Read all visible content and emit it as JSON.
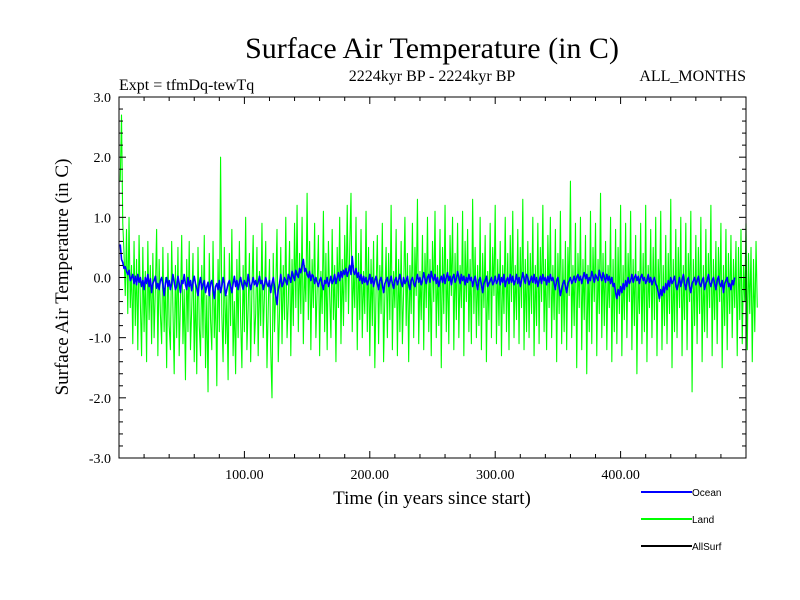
{
  "chart_data": {
    "type": "line",
    "title": "Surface Air Temperature (in C)",
    "subtitle_left": "Expt = tfmDq-tewTq",
    "subtitle_center": "2224kyr BP - 2224kyr BP",
    "subtitle_right": "ALL_MONTHS",
    "xlabel": "Time (in years since start)",
    "ylabel": "Surface Air Temperature (in C)",
    "xlim": [
      0,
      500
    ],
    "ylim": [
      -3.0,
      3.0
    ],
    "x_ticks": [
      100,
      200,
      300,
      400
    ],
    "x_tick_labels": [
      "100.00",
      "200.00",
      "300.00",
      "400.00"
    ],
    "y_ticks": [
      -3.0,
      -2.0,
      -1.0,
      0.0,
      1.0,
      2.0,
      3.0
    ],
    "y_tick_labels": [
      "-3.0",
      "-2.0",
      "-1.0",
      "0.0",
      "1.0",
      "2.0",
      "3.0"
    ],
    "legend_position": "bottom-right",
    "series": [
      {
        "name": "Ocean",
        "color": "#0000ff",
        "x_start": 1,
        "x_step": 1,
        "approx_mean": -0.05,
        "values": [
          0.55,
          0.3,
          0.25,
          0.15,
          0.18,
          0.1,
          0.05,
          0.12,
          -0.05,
          0.0,
          0.05,
          -0.1,
          0.02,
          -0.12,
          0.05,
          -0.08,
          0.0,
          -0.15,
          -0.05,
          -0.2,
          0.0,
          -0.1,
          0.05,
          -0.15,
          -0.02,
          -0.25,
          -0.1,
          -0.05,
          0.02,
          -0.18,
          -0.1,
          -0.2,
          -0.05,
          0.0,
          -0.12,
          -0.3,
          -0.1,
          0.0,
          -0.15,
          -0.05,
          -0.2,
          -0.1,
          0.05,
          -0.08,
          -0.2,
          -0.15,
          0.02,
          -0.1,
          -0.25,
          -0.05,
          -0.1,
          0.05,
          -0.12,
          -0.2,
          0.0,
          -0.15,
          -0.05,
          -0.22,
          -0.08,
          0.02,
          -0.1,
          -0.18,
          -0.3,
          -0.1,
          0.0,
          -0.2,
          -0.12,
          -0.05,
          -0.25,
          -0.15,
          -0.08,
          -0.3,
          -0.1,
          -0.05,
          -0.2,
          -0.35,
          -0.15,
          -0.1,
          -0.2,
          -0.05,
          -0.25,
          -0.15,
          0.0,
          -0.1,
          -0.3,
          -0.2,
          -0.1,
          -0.05,
          -0.15,
          -0.25,
          -0.1,
          0.02,
          -0.15,
          -0.05,
          -0.2,
          -0.08,
          0.0,
          -0.12,
          -0.2,
          -0.05,
          -0.1,
          -0.15,
          0.05,
          -0.08,
          -0.2,
          -0.1,
          0.0,
          -0.12,
          -0.05,
          -0.15,
          -0.08,
          0.02,
          -0.1,
          -0.05,
          -0.2,
          -0.12,
          0.0,
          -0.1,
          -0.15,
          -0.05,
          -0.25,
          -0.1,
          0.0,
          -0.15,
          -0.3,
          -0.45,
          -0.2,
          -0.1,
          0.05,
          -0.15,
          -0.1,
          0.0,
          -0.05,
          -0.12,
          0.05,
          0.0,
          -0.08,
          0.1,
          0.02,
          -0.05,
          0.12,
          0.05,
          0.0,
          0.15,
          0.08,
          0.2,
          0.3,
          0.1,
          0.15,
          0.05,
          0.0,
          0.1,
          -0.05,
          0.05,
          0.02,
          -0.1,
          0.0,
          -0.08,
          -0.15,
          -0.05,
          0.0,
          -0.12,
          -0.2,
          -0.05,
          -0.1,
          0.0,
          -0.15,
          -0.08,
          0.02,
          -0.1,
          -0.05,
          0.05,
          -0.1,
          0.0,
          0.08,
          -0.05,
          0.1,
          0.0,
          0.12,
          0.05,
          0.15,
          0.02,
          0.1,
          0.2,
          0.05,
          0.35,
          0.1,
          0.05,
          0.15,
          0.0,
          0.08,
          -0.05,
          0.05,
          -0.1,
          0.02,
          -0.08,
          0.0,
          -0.12,
          -0.05,
          0.05,
          -0.1,
          0.0,
          -0.15,
          -0.05,
          0.02,
          -0.1,
          -0.2,
          -0.05,
          0.0,
          -0.12,
          -0.25,
          -0.1,
          -0.05,
          0.0,
          -0.15,
          -0.08,
          0.02,
          -0.1,
          -0.18,
          -0.05,
          0.0,
          -0.12,
          -0.05,
          0.05,
          -0.08,
          -0.15,
          0.0,
          -0.1,
          -0.05,
          0.02,
          -0.12,
          -0.2,
          -0.05,
          0.0,
          -0.1,
          -0.15,
          -0.05,
          0.05,
          -0.08,
          0.0,
          -0.12,
          -0.05,
          0.08,
          -0.02,
          -0.1,
          0.0,
          0.05,
          -0.08,
          0.1,
          0.0,
          -0.05,
          0.05,
          -0.1,
          0.0,
          -0.15,
          -0.05,
          0.02,
          -0.08,
          0.05,
          -0.1,
          0.0,
          0.08,
          -0.05,
          0.02,
          -0.12,
          0.0,
          0.05,
          -0.08,
          -0.02,
          0.1,
          0.0,
          -0.1,
          0.05,
          -0.05,
          0.02,
          -0.12,
          0.0,
          -0.08,
          0.05,
          -0.05,
          0.0,
          -0.15,
          -0.05,
          0.02,
          -0.1,
          -0.2,
          -0.05,
          0.0,
          -0.12,
          -0.25,
          -0.1,
          -0.05,
          0.02,
          -0.15,
          -0.1,
          -0.05,
          0.0,
          -0.12,
          -0.08,
          0.02,
          -0.1,
          -0.05,
          0.05,
          -0.12,
          0.0,
          -0.08,
          0.05,
          -0.15,
          -0.05,
          0.0,
          -0.1,
          0.05,
          -0.08,
          0.02,
          -0.12,
          -0.05,
          0.05,
          -0.1,
          0.0,
          -0.15,
          -0.05,
          0.08,
          -0.02,
          -0.1,
          0.05,
          0.0,
          -0.12,
          -0.05,
          0.02,
          -0.08,
          0.05,
          -0.1,
          0.0,
          -0.15,
          -0.05,
          0.02,
          -0.1,
          0.05,
          -0.05,
          0.0,
          -0.12,
          0.02,
          -0.08,
          0.05,
          -0.05,
          0.0,
          -0.1,
          -0.2,
          -0.05,
          0.0,
          -0.15,
          -0.3,
          -0.2,
          -0.1,
          -0.05,
          -0.15,
          -0.25,
          -0.1,
          -0.05,
          0.0,
          -0.1,
          -0.05,
          0.02,
          -0.08,
          0.0,
          0.05,
          -0.05,
          0.02,
          -0.1,
          0.0,
          0.08,
          -0.02,
          0.05,
          -0.1,
          0.0,
          -0.05,
          0.1,
          0.02,
          -0.08,
          0.05,
          0.0,
          -0.05,
          0.12,
          0.02,
          -0.05,
          0.08,
          0.0,
          -0.08,
          0.05,
          -0.05,
          0.02,
          -0.1,
          0.0,
          -0.15,
          -0.1,
          -0.25,
          -0.35,
          -0.2,
          -0.3,
          -0.15,
          -0.25,
          -0.1,
          -0.2,
          -0.05,
          -0.15,
          0.0,
          -0.1,
          -0.05,
          0.05,
          -0.08,
          0.0,
          0.05,
          -0.05,
          0.02,
          -0.1,
          0.0,
          0.05,
          -0.05,
          0.0,
          -0.1,
          -0.05,
          0.05,
          -0.08,
          0.0,
          -0.12,
          -0.05,
          0.0,
          -0.1,
          -0.15,
          -0.25,
          -0.35,
          -0.2,
          -0.3,
          -0.15,
          -0.25,
          -0.1,
          -0.2,
          -0.05,
          -0.15,
          0.0,
          -0.1,
          -0.05,
          0.02,
          -0.12,
          -0.2,
          -0.1,
          0.0,
          -0.15,
          -0.05,
          0.05,
          -0.1,
          -0.2,
          -0.05,
          0.0,
          -0.15,
          -0.25,
          -0.1,
          -0.05,
          0.0,
          -0.12,
          -0.05,
          0.02,
          -0.1,
          -0.15,
          -0.05,
          0.0,
          -0.2,
          -0.1,
          -0.05,
          0.05,
          -0.08,
          -0.15,
          -0.05,
          0.0,
          -0.1,
          -0.2,
          -0.05,
          0.02,
          -0.1,
          -0.15,
          -0.05,
          -0.25,
          -0.1,
          -0.05,
          0.0,
          -0.15,
          -0.1,
          -0.2,
          -0.05,
          -0.12,
          0.0
        ]
      },
      {
        "name": "Land",
        "color": "#00ff00",
        "x_start": 1,
        "x_step": 1,
        "approx_mean": -0.15,
        "values": [
          1.6,
          2.7,
          0.9,
          0.4,
          -0.3,
          0.8,
          -0.6,
          1.0,
          -0.5,
          0.2,
          -1.1,
          0.6,
          -0.8,
          0.3,
          -1.2,
          0.7,
          -0.4,
          -1.3,
          0.5,
          -0.9,
          0.1,
          -1.4,
          0.6,
          -0.7,
          0.2,
          -1.1,
          0.4,
          -1.0,
          -0.2,
          0.8,
          -1.3,
          0.3,
          -0.6,
          -1.1,
          0.5,
          -0.9,
          0.0,
          -1.5,
          0.4,
          -0.8,
          -1.2,
          0.6,
          -0.5,
          -1.6,
          0.2,
          -1.0,
          0.5,
          -1.3,
          -0.4,
          0.7,
          -1.1,
          -0.2,
          -1.7,
          0.3,
          -0.9,
          0.6,
          -1.2,
          -0.5,
          0.4,
          -1.4,
          -0.1,
          -1.6,
          0.5,
          -0.8,
          -1.3,
          0.2,
          -1.0,
          0.7,
          -1.5,
          -0.3,
          -1.9,
          0.4,
          -0.7,
          -1.2,
          0.6,
          -1.0,
          -0.2,
          -1.8,
          0.3,
          -0.9,
          2.0,
          -0.6,
          -1.4,
          0.5,
          -1.1,
          -0.3,
          -1.7,
          0.4,
          -0.8,
          0.8,
          -1.3,
          -0.4,
          -1.6,
          0.3,
          -1.0,
          0.6,
          -0.7,
          -1.5,
          0.2,
          -0.9,
          1.0,
          -1.2,
          -0.5,
          0.4,
          -1.4,
          -0.2,
          0.7,
          -1.1,
          -0.6,
          0.5,
          -1.3,
          0.1,
          -0.8,
          0.9,
          -1.0,
          -0.3,
          0.6,
          -1.5,
          -0.5,
          0.3,
          -1.2,
          -2.0,
          0.4,
          -0.9,
          -0.2,
          0.8,
          -1.4,
          -0.6,
          0.5,
          -1.1,
          0.2,
          -0.7,
          1.0,
          -1.0,
          -0.4,
          0.6,
          -1.3,
          0.3,
          -0.8,
          0.9,
          -0.5,
          1.2,
          -0.9,
          0.4,
          -0.6,
          1.0,
          -1.1,
          0.2,
          -0.4,
          1.4,
          -0.7,
          0.6,
          -1.2,
          0.3,
          -0.5,
          0.9,
          -1.0,
          -0.2,
          0.7,
          -1.3,
          0.1,
          -0.6,
          1.1,
          -0.9,
          0.4,
          -1.2,
          0.6,
          -0.3,
          -1.0,
          0.8,
          -0.7,
          0.2,
          -1.4,
          0.5,
          -0.5,
          1.0,
          -1.1,
          0.3,
          -0.8,
          0.7,
          -0.4,
          1.2,
          -0.6,
          0.5,
          1.4,
          -0.9,
          0.2,
          -0.5,
          1.0,
          -1.2,
          0.4,
          -0.7,
          0.8,
          -1.0,
          0.1,
          -0.6,
          1.1,
          -0.9,
          0.5,
          -1.3,
          0.3,
          -0.8,
          0.6,
          -1.5,
          -0.2,
          0.7,
          -1.1,
          0.2,
          -0.6,
          0.9,
          -1.4,
          -0.3,
          0.5,
          -1.0,
          0.4,
          -0.7,
          1.2,
          -1.2,
          0.1,
          -0.5,
          0.8,
          -1.3,
          0.3,
          -0.9,
          0.6,
          -1.1,
          -0.2,
          1.0,
          -0.8,
          0.4,
          -1.4,
          0.2,
          -0.6,
          0.9,
          -1.0,
          0.5,
          -0.3,
          1.3,
          -1.1,
          0.1,
          -0.7,
          0.7,
          -1.2,
          0.4,
          -0.5,
          1.0,
          -0.9,
          0.3,
          -1.3,
          0.6,
          -0.4,
          1.1,
          -1.0,
          0.2,
          -0.8,
          0.8,
          -1.5,
          0.5,
          -0.6,
          1.2,
          -0.9,
          0.3,
          -1.1,
          0.7,
          -0.3,
          1.0,
          -1.2,
          0.4,
          -0.7,
          0.9,
          -1.0,
          0.2,
          -0.5,
          1.1,
          -1.3,
          0.6,
          -0.4,
          0.8,
          -0.9,
          0.3,
          -1.1,
          1.3,
          -0.6,
          0.5,
          -1.0,
          0.2,
          -0.8,
          1.0,
          -1.2,
          0.4,
          -0.5,
          0.7,
          -1.4,
          0.1,
          -0.7,
          0.9,
          -1.0,
          0.5,
          -0.3,
          1.2,
          -1.1,
          0.3,
          -0.8,
          0.6,
          -1.3,
          0.2,
          -0.6,
          1.0,
          -0.9,
          0.4,
          -1.2,
          0.7,
          -0.4,
          1.1,
          -1.0,
          0.2,
          -0.7,
          0.8,
          -1.1,
          0.5,
          -0.5,
          1.3,
          -1.2,
          0.3,
          -0.9,
          0.6,
          -1.0,
          0.4,
          -0.6,
          1.0,
          -1.3,
          0.2,
          -0.8,
          0.9,
          -1.1,
          0.5,
          -0.4,
          1.2,
          -0.9,
          0.3,
          -1.2,
          0.7,
          -0.5,
          1.0,
          -1.0,
          0.2,
          -0.7,
          0.8,
          -1.4,
          0.4,
          -0.6,
          1.1,
          -1.1,
          0.3,
          -0.9,
          0.6,
          -1.2,
          0.5,
          -0.3,
          1.6,
          -1.0,
          0.2,
          -0.8,
          0.9,
          -1.5,
          0.4,
          -0.5,
          1.0,
          -1.2,
          0.3,
          -0.7,
          0.7,
          -1.6,
          0.2,
          -0.9,
          1.1,
          -1.1,
          0.5,
          -0.4,
          0.9,
          -1.3,
          0.3,
          -0.6,
          1.4,
          -1.0,
          0.4,
          -0.8,
          0.6,
          -1.2,
          0.2,
          -0.5,
          1.0,
          -1.4,
          0.3,
          -0.9,
          0.8,
          -1.1,
          0.5,
          -0.6,
          1.2,
          -1.3,
          0.2,
          -0.7,
          0.9,
          -1.0,
          0.4,
          -0.4,
          1.1,
          -1.2,
          0.3,
          -0.8,
          0.7,
          -1.6,
          0.1,
          -0.6,
          0.9,
          -1.1,
          0.4,
          -0.9,
          1.2,
          -1.4,
          0.2,
          -0.5,
          0.8,
          -1.0,
          0.5,
          -0.7,
          1.0,
          -1.3,
          0.3,
          -0.4,
          1.1,
          -1.2,
          0.2,
          -0.8,
          0.7,
          -1.1,
          0.4,
          -0.6,
          1.3,
          -1.5,
          0.3,
          -0.9,
          0.8,
          -1.0,
          0.5,
          -0.5,
          1.0,
          -1.3,
          0.2,
          -0.7,
          0.9,
          -1.2,
          0.4,
          -0.4,
          1.1,
          -1.9,
          0.3,
          -0.8,
          0.7,
          -1.1,
          0.5,
          -0.6,
          1.0,
          -1.4,
          0.2,
          -0.9,
          0.8,
          -1.0,
          0.4,
          -0.5,
          1.2,
          -1.3,
          0.3,
          -0.7,
          0.6,
          -1.1,
          0.5,
          -0.4,
          0.9,
          -1.5,
          0.2,
          -0.8,
          0.8,
          -1.2,
          0.4,
          -0.6,
          0.7,
          -1.0,
          0.3,
          -0.5,
          0.6,
          -1.3,
          0.5,
          -0.7,
          0.8,
          -1.1,
          0.2,
          -0.4,
          0.9,
          -1.2,
          0.4,
          -0.6,
          0.5,
          -1.4,
          0.3,
          -0.9,
          0.6,
          -0.5
        ]
      },
      {
        "name": "AllSurf",
        "color": "#000000",
        "values": []
      }
    ]
  }
}
